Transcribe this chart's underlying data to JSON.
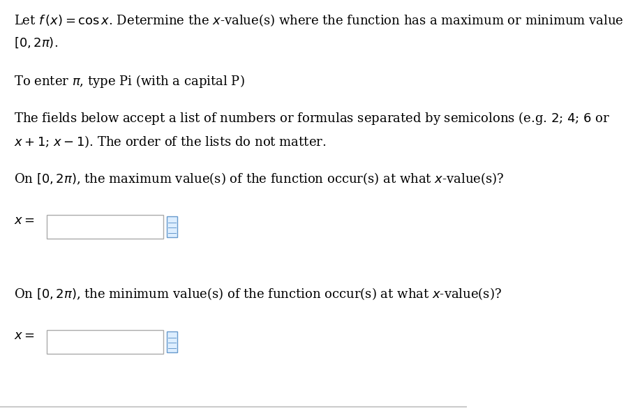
{
  "bg_color": "#ffffff",
  "text_color": "#000000",
  "line1": "Let $f\\,(x) = \\cos x$. Determine the $x$-value(s) where the function has a maximum or minimum value on",
  "line2": "$[0, 2\\pi)$.",
  "line3": "To enter $\\pi$, type Pi (with a capital P)",
  "line4": "The fields below accept a list of numbers or formulas separated by semicolons (e.g. $2$; $4$; $6$ or",
  "line5": "$x + 1$; $x - 1$). The order of the lists do not matter.",
  "line6": "On $[0, 2\\pi)$, the maximum value(s) of the function occur(s) at what $x$-value(s)?",
  "label_x1": "$x =$",
  "line7": "On $[0, 2\\pi)$, the minimum value(s) of the function occur(s) at what $x$-value(s)?",
  "label_x2": "$x =$",
  "font_size_main": 13,
  "box_color": "#ffffff",
  "box_edge_color": "#aaaaaa",
  "icon_color": "#6699cc",
  "icon_face_color": "#ddeeff",
  "bottom_line_color": "#cccccc"
}
